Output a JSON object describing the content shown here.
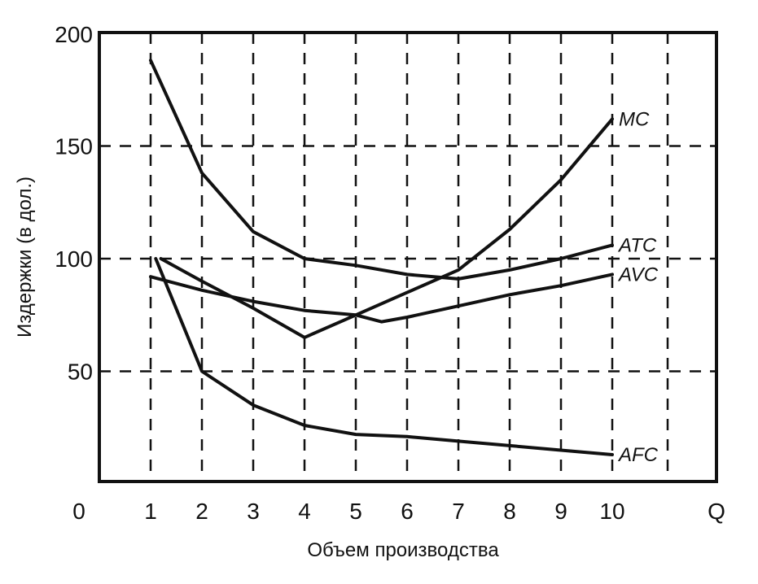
{
  "chart_data": {
    "type": "line",
    "xlabel": "Объем производства",
    "ylabel": "Издержки (в дол.)",
    "x_origin_label": "0",
    "x_end_label": "Q",
    "xticks": [
      "1",
      "2",
      "3",
      "4",
      "5",
      "6",
      "7",
      "8",
      "9",
      "10"
    ],
    "yticks": [
      "50",
      "100",
      "150",
      "200"
    ],
    "xlim": [
      0,
      12
    ],
    "ylim": [
      0,
      200
    ],
    "grid": true,
    "series": [
      {
        "name": "MC",
        "x": [
          1.2,
          2,
          3,
          4,
          5,
          6,
          7,
          8,
          9,
          10
        ],
        "y": [
          100,
          90,
          78,
          65,
          75,
          85,
          95,
          113,
          135,
          162
        ]
      },
      {
        "name": "ATC",
        "x": [
          1,
          2,
          3,
          4,
          5,
          6,
          7,
          8,
          9,
          10
        ],
        "y": [
          188,
          138,
          112,
          100,
          97,
          93,
          91,
          95,
          100,
          106
        ]
      },
      {
        "name": "AVC",
        "x": [
          1,
          2,
          3,
          4,
          5,
          5.5,
          6,
          7,
          8,
          9,
          10
        ],
        "y": [
          92,
          86,
          81,
          77,
          75,
          72,
          74,
          79,
          84,
          88,
          93
        ]
      },
      {
        "name": "AFC",
        "x": [
          1.1,
          2,
          3,
          4,
          5,
          6,
          7,
          8,
          9,
          10
        ],
        "y": [
          100,
          50,
          35,
          26,
          22,
          21,
          19,
          17,
          15,
          13
        ]
      }
    ]
  }
}
